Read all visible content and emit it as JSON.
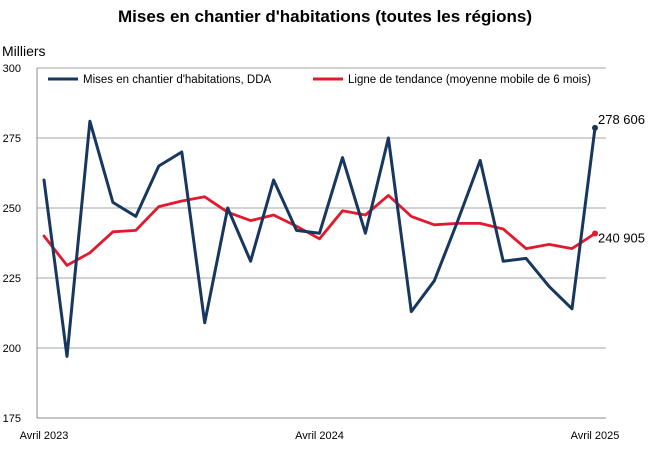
{
  "chart_data": {
    "type": "line",
    "title": "Mises en chantier d'habitations (toutes les régions)",
    "ylabel": "Milliers",
    "ylim": [
      175,
      300
    ],
    "yticks": [
      175,
      200,
      225,
      250,
      275,
      300
    ],
    "grid": true,
    "legend_position": "top",
    "x_tick_labels": [
      {
        "index": 0,
        "label": "Avril 2023"
      },
      {
        "index": 12,
        "label": "Avril 2024"
      },
      {
        "index": 24,
        "label": "Avril 2025"
      }
    ],
    "series": [
      {
        "name": "Mises en chantier d'habitations, DDA",
        "color": "#17375e",
        "values": [
          260,
          197,
          281,
          252,
          247,
          265,
          270,
          209,
          250,
          231,
          260,
          242,
          241,
          268,
          241,
          275,
          213,
          224,
          245,
          267,
          231,
          232,
          222,
          214,
          278.606
        ]
      },
      {
        "name": "Ligne de tendance (moyenne mobile de 6 mois)",
        "color": "#e31a2d",
        "values": [
          240,
          229.5,
          234,
          241.5,
          242,
          250.5,
          252.5,
          254,
          248.5,
          245.5,
          247.5,
          243.5,
          239,
          249,
          247.5,
          254.5,
          247,
          244,
          244.5,
          244.5,
          242.5,
          235.5,
          237,
          235.5,
          240.905
        ]
      }
    ],
    "end_labels": [
      "278 606",
      "240 905"
    ]
  }
}
